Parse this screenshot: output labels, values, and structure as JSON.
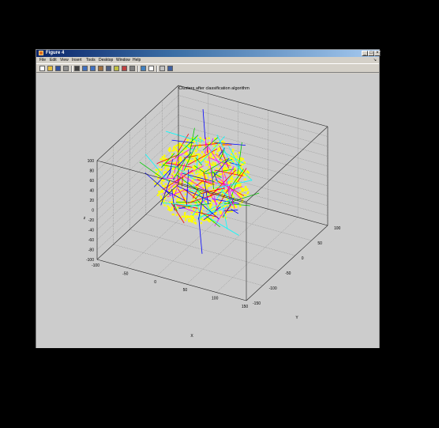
{
  "window": {
    "title": "Figure 4",
    "controls": {
      "minimize": "_",
      "maximize": "□",
      "close": "×"
    }
  },
  "menu": {
    "items": [
      "File",
      "Edit",
      "View",
      "Insert",
      "Tools",
      "Desktop",
      "Window",
      "Help"
    ],
    "dock_arrow": "↘"
  },
  "toolbar": {
    "buttons": [
      {
        "name": "new-figure-icon",
        "color": "#ffffff"
      },
      {
        "name": "open-file-icon",
        "color": "#e8c040"
      },
      {
        "name": "save-icon",
        "color": "#3050a0"
      },
      {
        "name": "print-icon",
        "color": "#909090"
      },
      {
        "name": "edit-plot-icon",
        "color": "#404040"
      },
      {
        "name": "zoom-in-icon",
        "color": "#4070c0"
      },
      {
        "name": "zoom-out-icon",
        "color": "#4070c0"
      },
      {
        "name": "pan-icon",
        "color": "#a07040"
      },
      {
        "name": "rotate-3d-icon",
        "color": "#506080"
      },
      {
        "name": "data-cursor-icon",
        "color": "#c0c040"
      },
      {
        "name": "brush-icon",
        "color": "#c04040"
      },
      {
        "name": "link-plot-icon",
        "color": "#808080"
      },
      {
        "name": "colorbar-icon",
        "color": "#4080c0"
      },
      {
        "name": "legend-icon",
        "color": "#ffffff"
      },
      {
        "name": "hide-plot-tools-icon",
        "color": "#c0c0c0"
      },
      {
        "name": "show-plot-tools-icon",
        "color": "#4060a0"
      }
    ]
  },
  "chart_data": {
    "type": "scatter",
    "title": "Clusters after classification algorithm",
    "xlabel": "X",
    "ylabel": "Y",
    "zlabel": "z",
    "xlim": [
      -100,
      150
    ],
    "ylim": [
      -150,
      100
    ],
    "zlim": [
      -100,
      100
    ],
    "x_ticks": [
      "-100",
      "-50",
      "0",
      "50",
      "100",
      "150"
    ],
    "y_ticks": [
      "-150",
      "-100",
      "-50",
      "0",
      "50",
      "100"
    ],
    "z_ticks": [
      "-100",
      "-80",
      "-60",
      "-40",
      "-20",
      "0",
      "20",
      "40",
      "60",
      "80",
      "100"
    ],
    "grid": true,
    "box": true,
    "cluster_colors": [
      "#ffff00",
      "#ff0000",
      "#0000ff",
      "#00cc00",
      "#ff00ff",
      "#00ffff"
    ]
  }
}
